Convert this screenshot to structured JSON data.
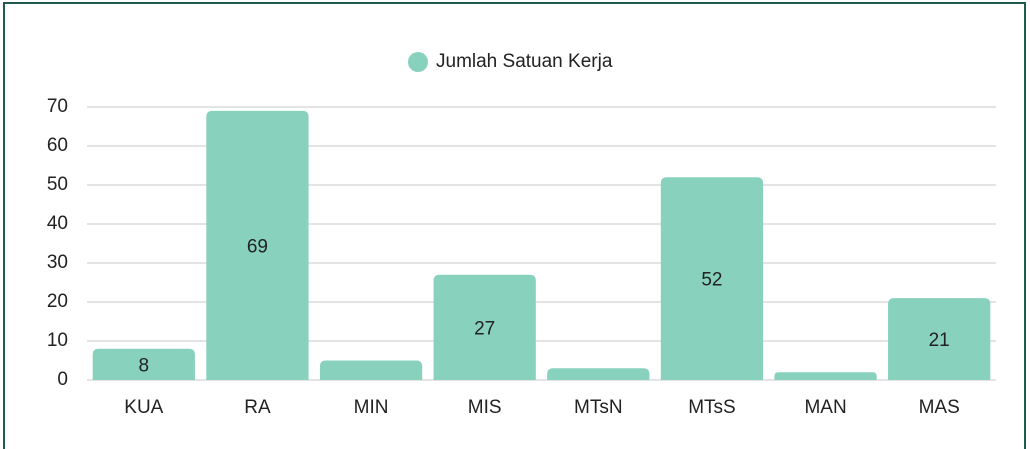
{
  "chart_data": {
    "type": "bar",
    "legend": "Jumlah Satuan Kerja",
    "categories": [
      "KUA",
      "RA",
      "MIN",
      "MIS",
      "MTsN",
      "MTsS",
      "MAN",
      "MAS"
    ],
    "values": [
      8,
      69,
      5,
      27,
      3,
      52,
      2,
      21
    ],
    "value_labels": [
      "8",
      "69",
      null,
      "27",
      null,
      "52",
      null,
      "21"
    ],
    "color": "#88d1bc",
    "ylim": [
      0,
      70
    ],
    "yticks": [
      0,
      10,
      20,
      30,
      40,
      50,
      60,
      70
    ],
    "grid": true
  }
}
